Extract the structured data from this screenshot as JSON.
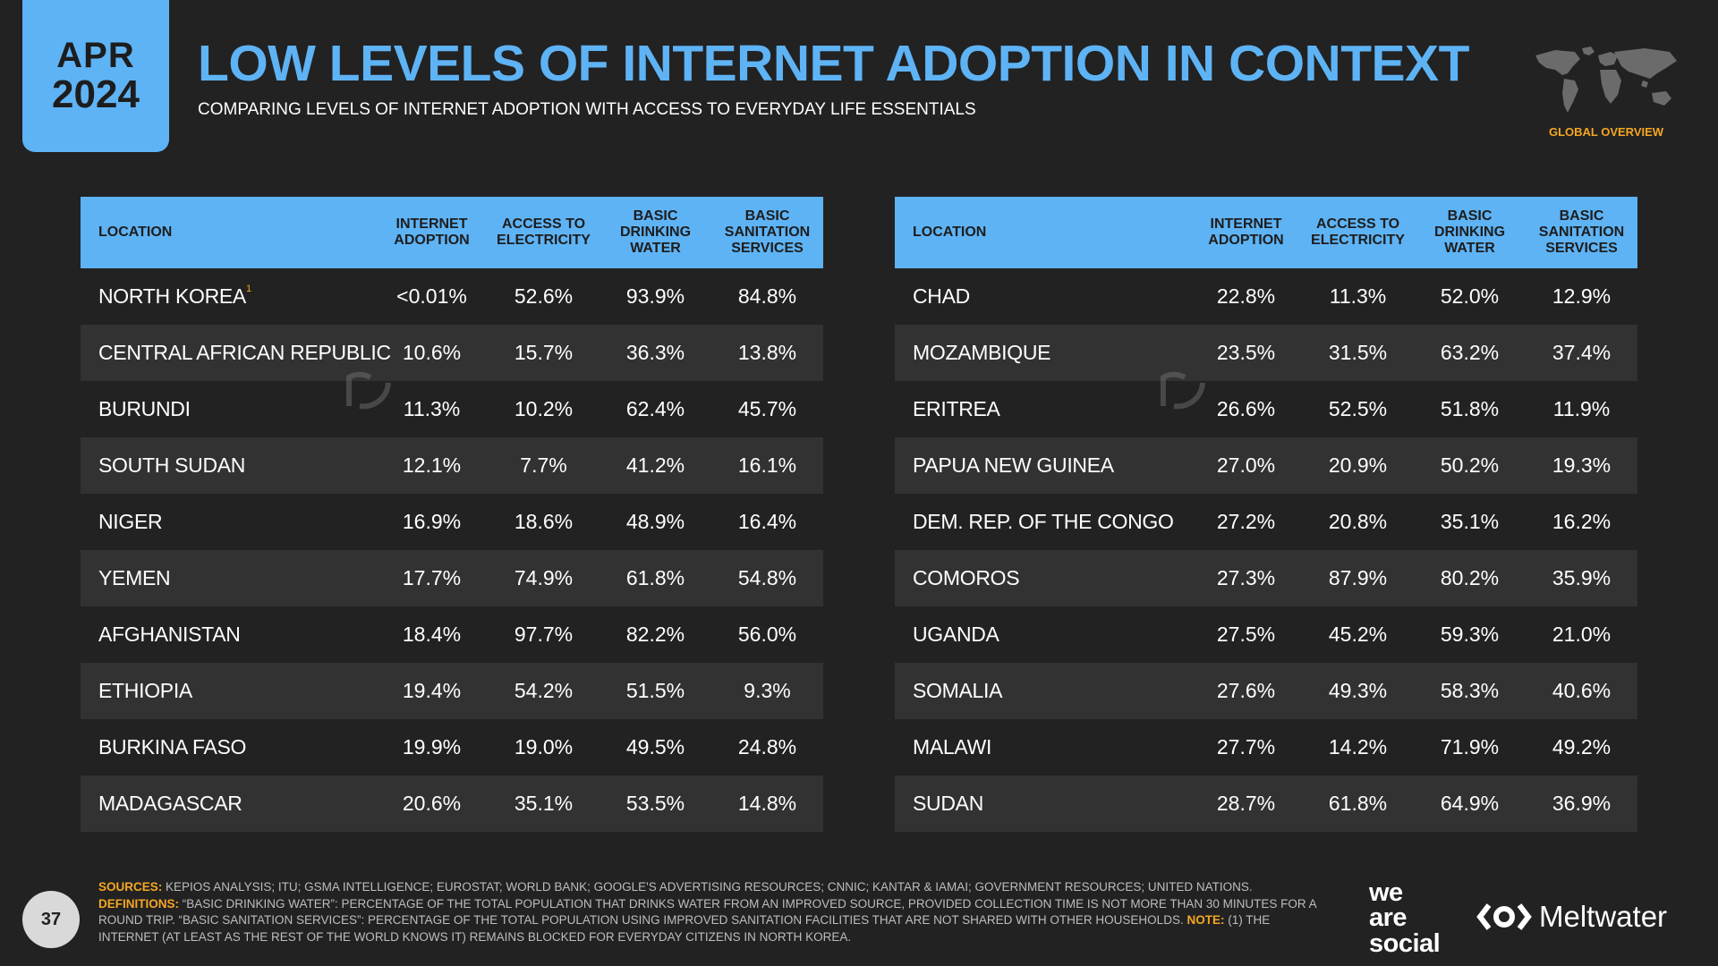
{
  "badge": {
    "month": "APR",
    "year": "2024"
  },
  "title": "LOW LEVELS OF INTERNET ADOPTION IN CONTEXT",
  "subtitle": "COMPARING LEVELS OF INTERNET ADOPTION WITH ACCESS TO EVERYDAY LIFE ESSENTIALS",
  "section_label": "GLOBAL OVERVIEW",
  "headers": {
    "location": "LOCATION",
    "internet": [
      "INTERNET",
      "ADOPTION"
    ],
    "electricity": [
      "ACCESS TO",
      "ELECTRICITY"
    ],
    "water": [
      "BASIC",
      "DRINKING",
      "WATER"
    ],
    "sanitation": [
      "BASIC",
      "SANITATION",
      "SERVICES"
    ]
  },
  "left_table": [
    {
      "location": "NORTH KOREA",
      "note": "1",
      "internet": "<0.01%",
      "electricity": "52.6%",
      "water": "93.9%",
      "sanitation": "84.8%"
    },
    {
      "location": "CENTRAL AFRICAN REPUBLIC",
      "internet": "10.6%",
      "electricity": "15.7%",
      "water": "36.3%",
      "sanitation": "13.8%"
    },
    {
      "location": "BURUNDI",
      "internet": "11.3%",
      "electricity": "10.2%",
      "water": "62.4%",
      "sanitation": "45.7%"
    },
    {
      "location": "SOUTH SUDAN",
      "internet": "12.1%",
      "electricity": "7.7%",
      "water": "41.2%",
      "sanitation": "16.1%"
    },
    {
      "location": "NIGER",
      "internet": "16.9%",
      "electricity": "18.6%",
      "water": "48.9%",
      "sanitation": "16.4%"
    },
    {
      "location": "YEMEN",
      "internet": "17.7%",
      "electricity": "74.9%",
      "water": "61.8%",
      "sanitation": "54.8%"
    },
    {
      "location": "AFGHANISTAN",
      "internet": "18.4%",
      "electricity": "97.7%",
      "water": "82.2%",
      "sanitation": "56.0%"
    },
    {
      "location": "ETHIOPIA",
      "internet": "19.4%",
      "electricity": "54.2%",
      "water": "51.5%",
      "sanitation": "9.3%"
    },
    {
      "location": "BURKINA FASO",
      "internet": "19.9%",
      "electricity": "19.0%",
      "water": "49.5%",
      "sanitation": "24.8%"
    },
    {
      "location": "MADAGASCAR",
      "internet": "20.6%",
      "electricity": "35.1%",
      "water": "53.5%",
      "sanitation": "14.8%"
    }
  ],
  "right_table": [
    {
      "location": "CHAD",
      "internet": "22.8%",
      "electricity": "11.3%",
      "water": "52.0%",
      "sanitation": "12.9%"
    },
    {
      "location": "MOZAMBIQUE",
      "internet": "23.5%",
      "electricity": "31.5%",
      "water": "63.2%",
      "sanitation": "37.4%"
    },
    {
      "location": "ERITREA",
      "internet": "26.6%",
      "electricity": "52.5%",
      "water": "51.8%",
      "sanitation": "11.9%"
    },
    {
      "location": "PAPUA NEW GUINEA",
      "internet": "27.0%",
      "electricity": "20.9%",
      "water": "50.2%",
      "sanitation": "19.3%"
    },
    {
      "location": "DEM. REP. OF THE CONGO",
      "internet": "27.2%",
      "electricity": "20.8%",
      "water": "35.1%",
      "sanitation": "16.2%"
    },
    {
      "location": "COMOROS",
      "internet": "27.3%",
      "electricity": "87.9%",
      "water": "80.2%",
      "sanitation": "35.9%"
    },
    {
      "location": "UGANDA",
      "internet": "27.5%",
      "electricity": "45.2%",
      "water": "59.3%",
      "sanitation": "21.0%"
    },
    {
      "location": "SOMALIA",
      "internet": "27.6%",
      "electricity": "49.3%",
      "water": "58.3%",
      "sanitation": "40.6%"
    },
    {
      "location": "MALAWI",
      "internet": "27.7%",
      "electricity": "14.2%",
      "water": "71.9%",
      "sanitation": "49.2%"
    },
    {
      "location": "SUDAN",
      "internet": "28.7%",
      "electricity": "61.8%",
      "water": "64.9%",
      "sanitation": "36.9%"
    }
  ],
  "footer": {
    "sources_label": "SOURCES:",
    "sources": "KEPIOS ANALYSIS; ITU; GSMA INTELLIGENCE; EUROSTAT; WORLD BANK; GOOGLE'S ADVERTISING RESOURCES; CNNIC; KANTAR & IAMAI; GOVERNMENT RESOURCES; UNITED NATIONS.",
    "definitions_label": "DEFINITIONS:",
    "definitions": "“BASIC DRINKING WATER”: PERCENTAGE OF THE TOTAL POPULATION THAT DRINKS WATER FROM AN IMPROVED SOURCE, PROVIDED COLLECTION TIME IS NOT MORE THAN 30 MINUTES FOR A ROUND TRIP. “BASIC SANITATION SERVICES”: PERCENTAGE OF THE TOTAL POPULATION USING IMPROVED SANITATION FACILITIES THAT ARE NOT SHARED WITH OTHER HOUSEHOLDS.",
    "note_label": "NOTE:",
    "note": "(1) THE INTERNET (AT LEAST AS THE REST OF THE WORLD KNOWS IT) REMAINS BLOCKED FOR EVERYDAY CITIZENS IN NORTH KOREA."
  },
  "page_number": "37",
  "brand": {
    "we": "we",
    "are": "are",
    "social": "social",
    "meltwater": "Meltwater"
  },
  "colors": {
    "accent": "#5eb3f5",
    "background": "#222222",
    "row_alt": "#323232",
    "highlight": "#f5a623"
  }
}
